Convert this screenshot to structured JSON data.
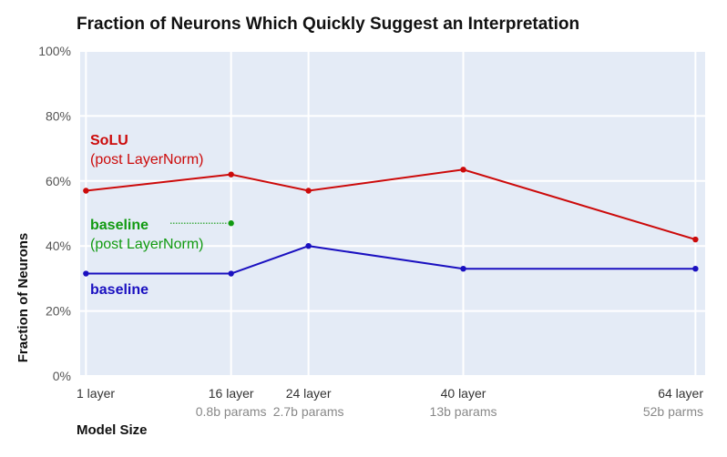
{
  "chart_data": {
    "type": "line",
    "title": "Fraction of Neurons Which Quickly Suggest an Interpretation",
    "xlabel": "Model Size",
    "ylabel": "Fraction of Neurons",
    "x_positions": [
      1,
      16,
      24,
      40,
      64
    ],
    "categories": [
      {
        "main": "1 layer",
        "sub": ""
      },
      {
        "main": "16 layer",
        "sub": "0.8b params"
      },
      {
        "main": "24 layer",
        "sub": "2.7b params"
      },
      {
        "main": "40 layer",
        "sub": "13b params"
      },
      {
        "main": "64 layer",
        "sub": "52b parms"
      }
    ],
    "ylim": [
      0,
      100
    ],
    "yticks": [
      0,
      20,
      40,
      60,
      80,
      100
    ],
    "ytick_labels": [
      "0%",
      "20%",
      "40%",
      "60%",
      "80%",
      "100%"
    ],
    "grid": true,
    "series": [
      {
        "key": "solu",
        "label_bold": "SoLU",
        "label_sub": "(post LayerNorm)",
        "color": "#cc0a0a",
        "x": [
          1,
          16,
          24,
          40,
          64
        ],
        "values": [
          57,
          62,
          57,
          63.5,
          42
        ]
      },
      {
        "key": "baseline",
        "label_bold": "baseline",
        "label_sub": "",
        "color": "#1a10c0",
        "x": [
          1,
          16,
          24,
          40,
          64
        ],
        "values": [
          31.5,
          31.5,
          40,
          33,
          33
        ]
      },
      {
        "key": "baseline_post_ln",
        "label_bold": "baseline",
        "label_sub": "(post LayerNorm)",
        "color": "#119a11",
        "x": [
          16
        ],
        "values": [
          47
        ]
      }
    ]
  }
}
